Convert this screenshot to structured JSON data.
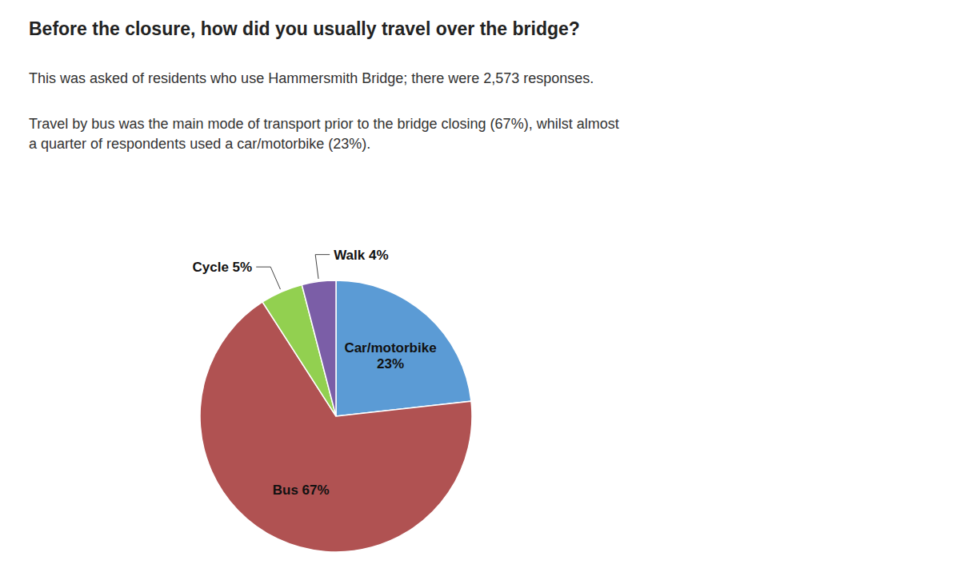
{
  "chart_data": {
    "type": "pie",
    "title": "Before the closure, how did you usually travel over the bridge?",
    "subtitle": [
      "This was asked of residents who use Hammersmith Bridge; there were 2,573 responses.",
      "Travel by bus was the main mode of transport prior to the bridge closing (67%), whilst almost\na quarter of respondents used a car/motorbike (23%)."
    ],
    "values": [
      23,
      67,
      5,
      4
    ],
    "value_labels": [
      "Car/motorbike\n23%",
      "Bus 67%",
      "Cycle 5%",
      "Walk 4%"
    ],
    "colors": [
      "#5B9BD5",
      "#B05252",
      "#92D050",
      "#7B5EA7"
    ],
    "data_labels": true
  }
}
